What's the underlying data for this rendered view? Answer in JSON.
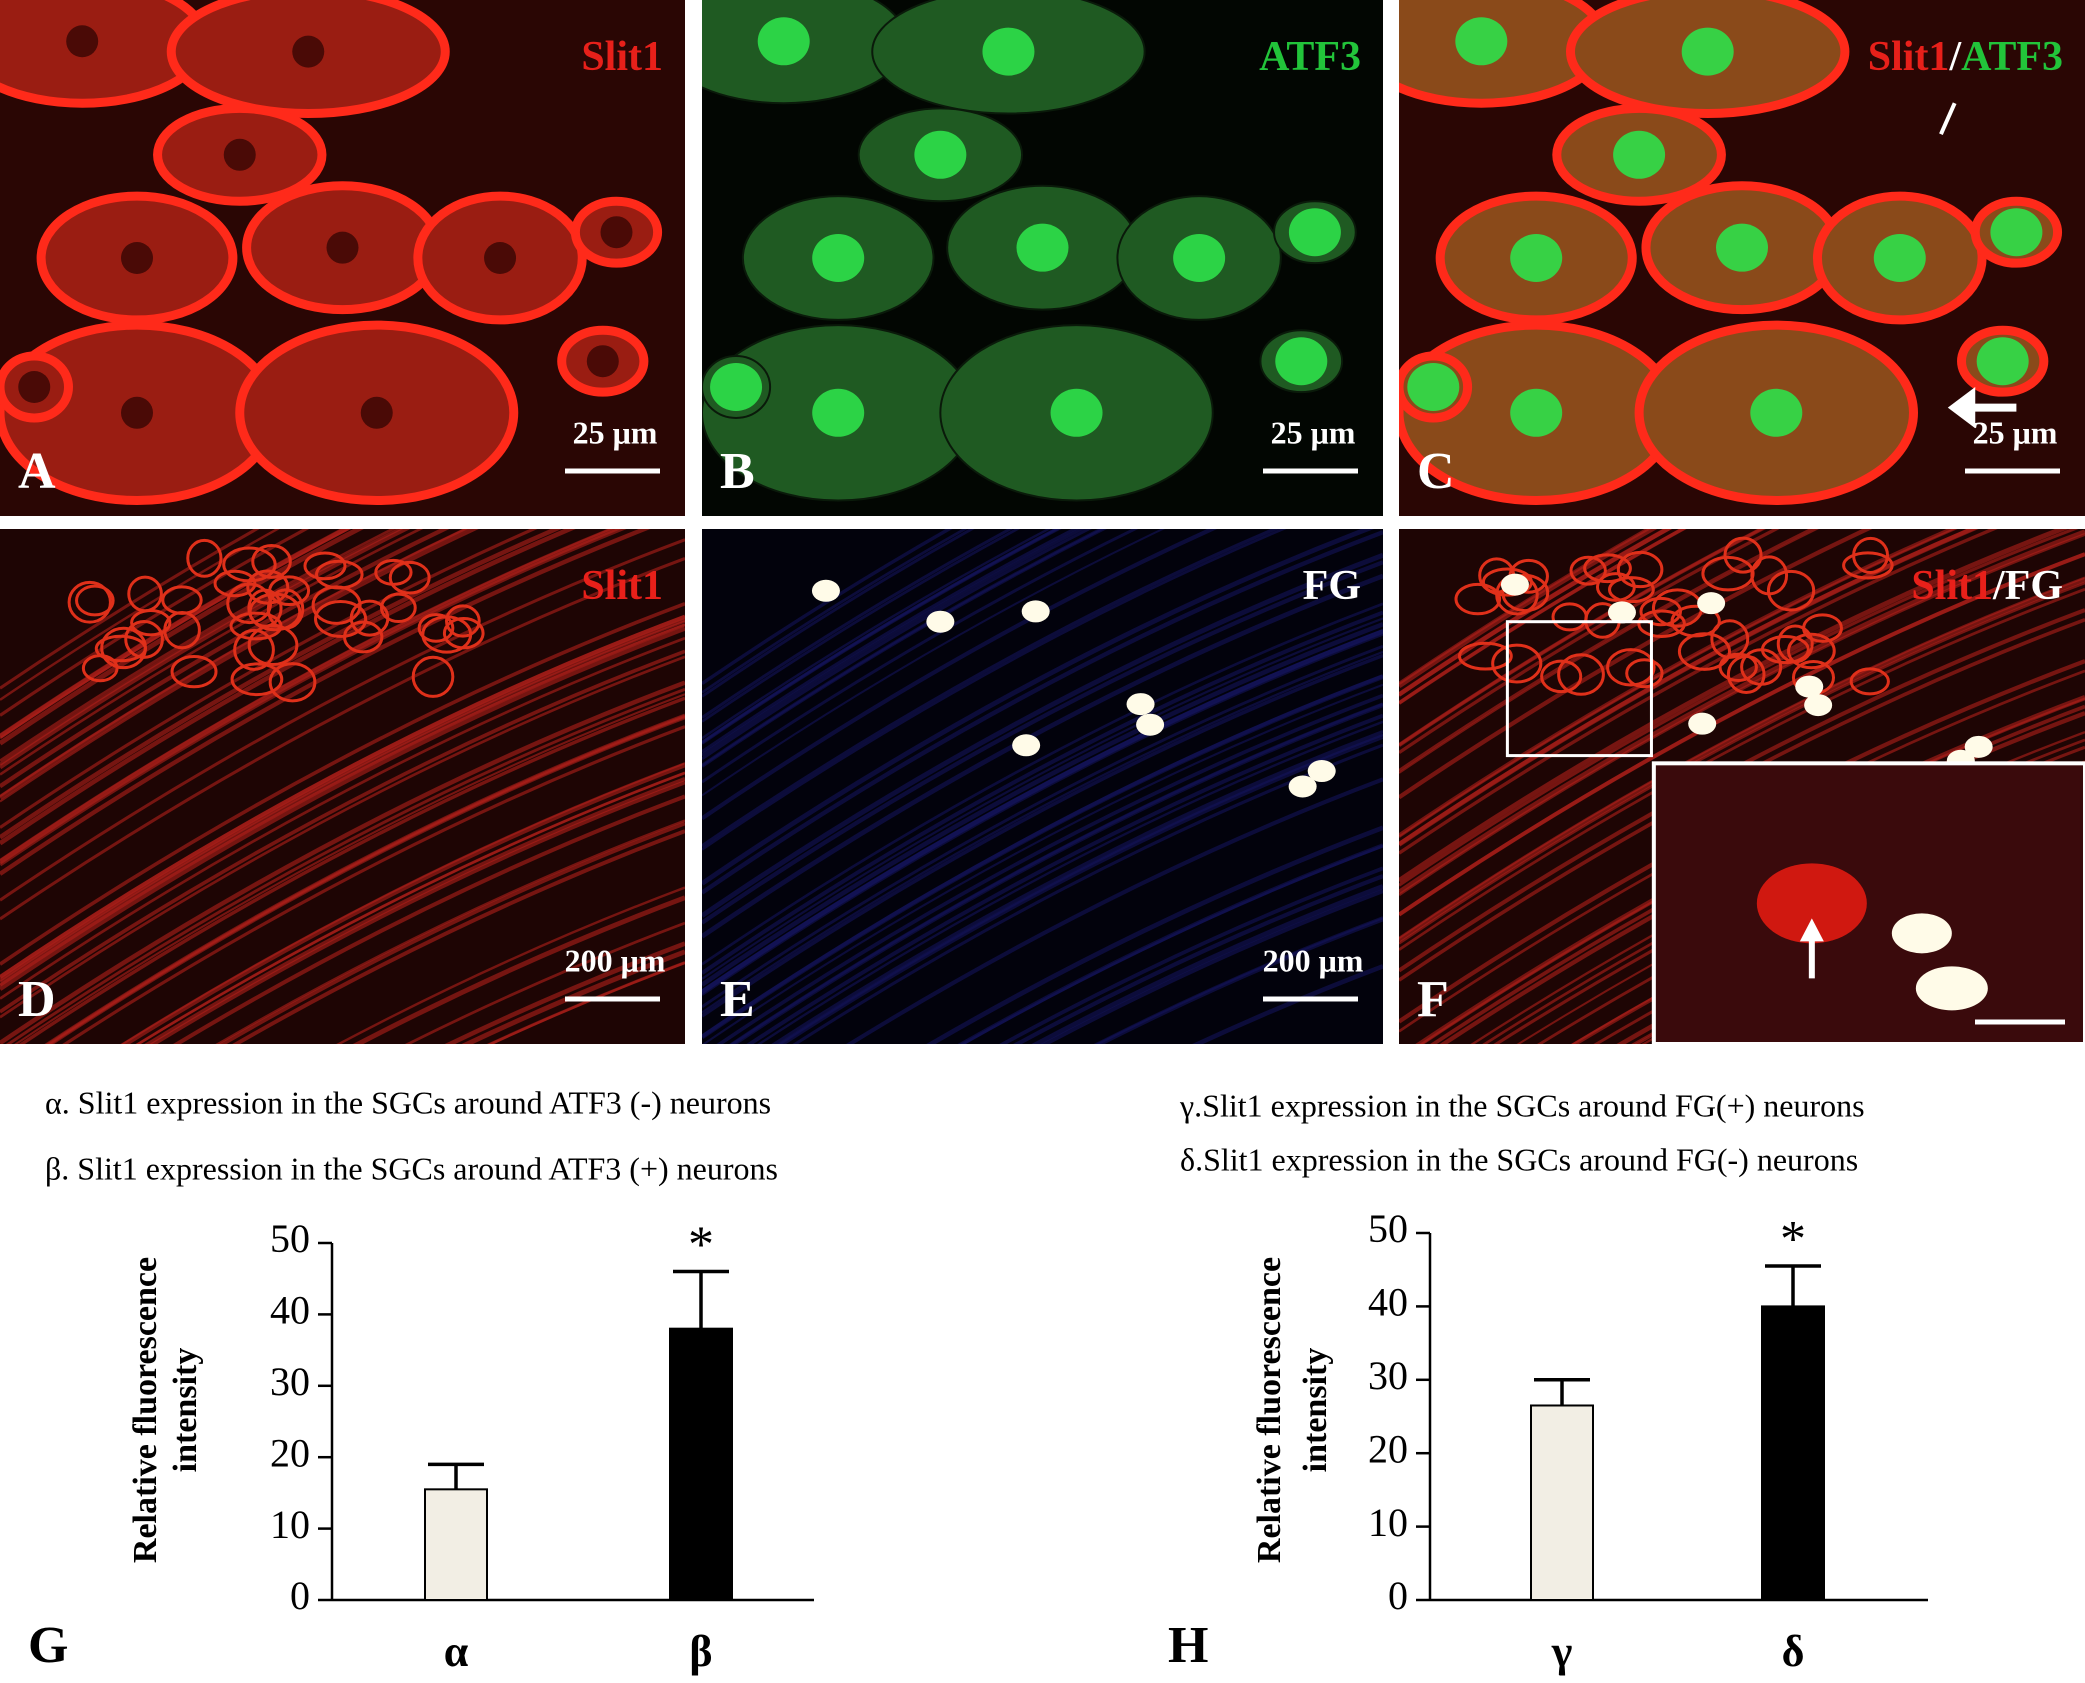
{
  "panels": [
    {
      "letter": "A",
      "label": [
        {
          "text": "Slit1",
          "color": "#e8201a"
        }
      ],
      "scale_bar": "25 μm"
    },
    {
      "letter": "B",
      "label": [
        {
          "text": "ATF3",
          "color": "#22c43a"
        }
      ],
      "scale_bar": "25 μm"
    },
    {
      "letter": "C",
      "label": [
        {
          "text": "Slit1",
          "color": "#e8201a"
        },
        {
          "text": "/",
          "color": "#ffffff"
        },
        {
          "text": "ATF3",
          "color": "#22c43a"
        }
      ],
      "scale_bar": "25 μm"
    },
    {
      "letter": "D",
      "label": [
        {
          "text": "Slit1",
          "color": "#e8201a"
        }
      ],
      "scale_bar": "200 μm"
    },
    {
      "letter": "E",
      "label": [
        {
          "text": "FG",
          "color": "#ffffff"
        }
      ],
      "scale_bar": "200 μm"
    },
    {
      "letter": "F",
      "label": [
        {
          "text": "Slit1",
          "color": "#e8201a"
        },
        {
          "text": "/FG",
          "color": "#ffffff"
        }
      ]
    }
  ],
  "chart_data": [
    {
      "type": "bar",
      "panel": "G",
      "notes": [
        "α. Slit1 expression in the SGCs around ATF3 (-) neurons",
        "β. Slit1 expression in the SGCs around ATF3 (+) neurons"
      ],
      "ylabel": [
        "Relative fluorescence",
        "intensity"
      ],
      "categories": [
        "α",
        "β"
      ],
      "values": [
        15.5,
        38
      ],
      "errors": [
        3.5,
        8
      ],
      "colors": [
        "#f2eee4",
        "#000000"
      ],
      "annotations": [
        {
          "category": "β",
          "text": "*"
        }
      ],
      "ylim": [
        0,
        50
      ],
      "yticks": [
        0,
        10,
        20,
        30,
        40,
        50
      ]
    },
    {
      "type": "bar",
      "panel": "H",
      "notes": [
        "γ.Slit1 expression in the SGCs around FG(+) neurons",
        "δ.Slit1 expression in the SGCs around FG(-) neurons"
      ],
      "ylabel": [
        "Relative fluorescence",
        "intensity"
      ],
      "categories": [
        "γ",
        "δ"
      ],
      "values": [
        26.5,
        40
      ],
      "errors": [
        3.5,
        5.5
      ],
      "colors": [
        "#f2eee4",
        "#000000"
      ],
      "annotations": [
        {
          "category": "δ",
          "text": "*"
        }
      ],
      "ylim": [
        0,
        50
      ],
      "yticks": [
        0,
        10,
        20,
        30,
        40,
        50
      ]
    }
  ]
}
